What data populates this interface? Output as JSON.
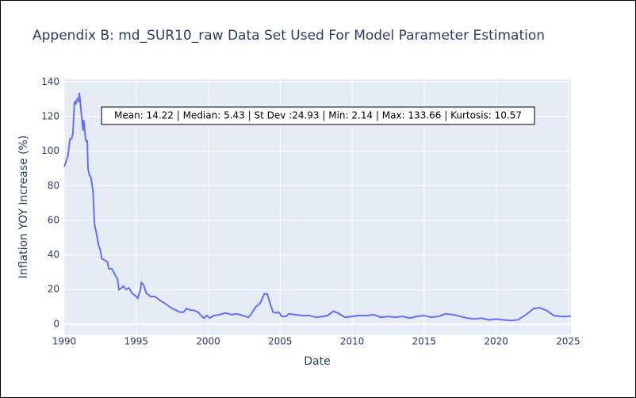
{
  "chart_data": {
    "type": "line",
    "title": "Appendix B: md_SUR10_raw Data Set Used For Model Parameter Estimation",
    "x_label": "Date",
    "y_label": "Inflation YOY Increase (%)",
    "annotation": "Mean: 14.22 | Median: 5.43 | St Dev :24.93 | Min: 2.14 | Max: 133.66 | Kurtosis: 10.57",
    "color": "#636efa",
    "grid": true,
    "xlim": [
      1990,
      2025.2
    ],
    "ylim": [
      -6,
      141.5
    ],
    "xticks": [
      1990,
      1995,
      2000,
      2005,
      2010,
      2015,
      2020,
      2025
    ],
    "yticks": [
      0,
      20,
      40,
      60,
      80,
      100,
      120,
      140
    ],
    "x": [
      1990.0,
      1990.25,
      1990.4,
      1990.5,
      1990.6,
      1990.7,
      1990.75,
      1990.8,
      1990.9,
      1991.0,
      1991.05,
      1991.15,
      1991.3,
      1991.35,
      1991.45,
      1991.5,
      1991.6,
      1991.65,
      1991.75,
      1991.85,
      1992.0,
      1992.1,
      1992.25,
      1992.4,
      1992.5,
      1992.6,
      1992.8,
      1993.0,
      1993.1,
      1993.3,
      1993.5,
      1993.7,
      1993.8,
      1994.0,
      1994.1,
      1994.3,
      1994.5,
      1994.7,
      1995.0,
      1995.1,
      1995.3,
      1995.35,
      1995.5,
      1995.7,
      1996.0,
      1996.3,
      1996.6,
      1997.0,
      1997.5,
      1997.8,
      1998.0,
      1998.3,
      1998.5,
      1998.8,
      1999.0,
      1999.3,
      1999.5,
      1999.7,
      1999.9,
      2000.1,
      2000.4,
      2000.8,
      2001.2,
      2001.6,
      2002.0,
      2002.4,
      2002.8,
      2003.0,
      2003.3,
      2003.6,
      2003.9,
      2004.1,
      2004.3,
      2004.5,
      2004.7,
      2004.9,
      2005.1,
      2005.4,
      2005.6,
      2006.0,
      2006.5,
      2007.0,
      2007.5,
      2008.0,
      2008.3,
      2008.7,
      2009.0,
      2009.5,
      2010.0,
      2010.5,
      2011.0,
      2011.5,
      2012.0,
      2012.5,
      2013.0,
      2013.5,
      2014.0,
      2014.5,
      2015.0,
      2015.5,
      2016.0,
      2016.5,
      2017.0,
      2017.5,
      2018.0,
      2018.5,
      2019.0,
      2019.5,
      2020.0,
      2020.5,
      2021.0,
      2021.5,
      2022.0,
      2022.3,
      2022.6,
      2023.0,
      2023.5,
      2024.0,
      2024.5,
      2025.0,
      2025.2
    ],
    "values": [
      91,
      97,
      107,
      107,
      110,
      127,
      129,
      127,
      130,
      129,
      133.66,
      125,
      112,
      118,
      110,
      106,
      106,
      90,
      86,
      85,
      77,
      58,
      52,
      45,
      43,
      38,
      37,
      36,
      32,
      32,
      29,
      26,
      20,
      21,
      22,
      20,
      21,
      18,
      16,
      15,
      20,
      24,
      23,
      18,
      16,
      16,
      14,
      12,
      9,
      8,
      7,
      7,
      9,
      8,
      8,
      7,
      5,
      3.5,
      5,
      3.5,
      5,
      5.5,
      6.5,
      5.5,
      6,
      5,
      4,
      6,
      10,
      12,
      17.5,
      17.5,
      12,
      7,
      6.5,
      7,
      4.5,
      4.5,
      6,
      5.5,
      5,
      5,
      4,
      4.5,
      5,
      7.5,
      6.5,
      4,
      4.5,
      5,
      5,
      5.5,
      4,
      4.5,
      4,
      4.5,
      3.5,
      4.5,
      5,
      4,
      4.5,
      6,
      5.5,
      4.5,
      3.5,
      3,
      3.5,
      2.5,
      3,
      2.5,
      2.14,
      2.5,
      5,
      7,
      9,
      9.5,
      8,
      5,
      4.5,
      4.5,
      4.7
    ]
  }
}
